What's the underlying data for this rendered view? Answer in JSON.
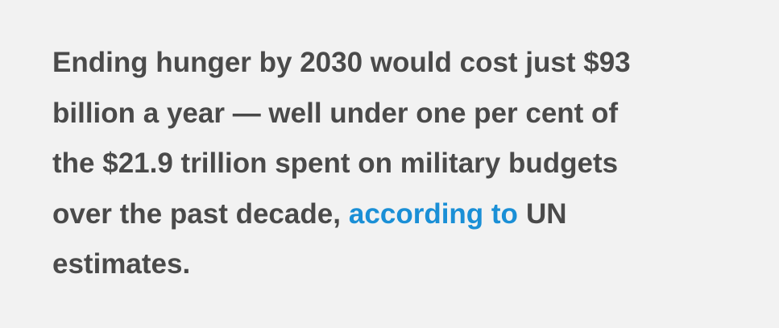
{
  "paragraph": {
    "lines": [
      "Ending hunger by 2030 would cost just $93",
      "billion a year — well under one per cent of",
      "the $21.9 trillion spent on military budgets"
    ],
    "line_4": {
      "before": "over the past decade,",
      "link": "according to",
      "after": "UN"
    },
    "line_5": "estimates."
  }
}
